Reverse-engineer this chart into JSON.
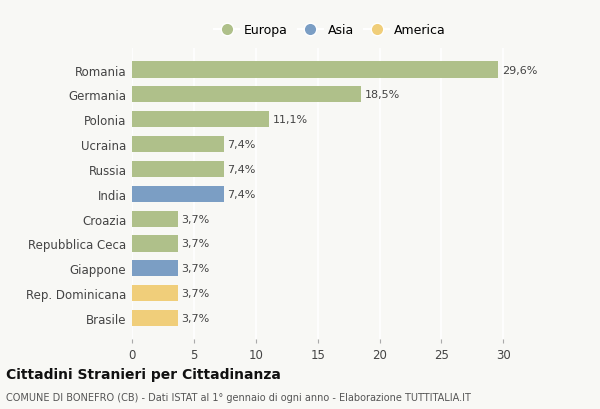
{
  "categories": [
    "Romania",
    "Germania",
    "Polonia",
    "Ucraina",
    "Russia",
    "India",
    "Croazia",
    "Repubblica Ceca",
    "Giappone",
    "Rep. Dominicana",
    "Brasile"
  ],
  "values": [
    29.6,
    18.5,
    11.1,
    7.4,
    7.4,
    7.4,
    3.7,
    3.7,
    3.7,
    3.7,
    3.7
  ],
  "labels": [
    "29,6%",
    "18,5%",
    "11,1%",
    "7,4%",
    "7,4%",
    "7,4%",
    "3,7%",
    "3,7%",
    "3,7%",
    "3,7%",
    "3,7%"
  ],
  "continents": [
    "Europa",
    "Europa",
    "Europa",
    "Europa",
    "Europa",
    "Asia",
    "Europa",
    "Europa",
    "Asia",
    "America",
    "America"
  ],
  "colors": {
    "Europa": "#afc08a",
    "Asia": "#7b9ec4",
    "America": "#f0ce7a"
  },
  "legend": [
    "Europa",
    "Asia",
    "America"
  ],
  "legend_colors": [
    "#afc08a",
    "#7b9ec4",
    "#f0ce7a"
  ],
  "xlim": [
    0,
    32
  ],
  "xticks": [
    0,
    5,
    10,
    15,
    20,
    25,
    30
  ],
  "title": "Cittadini Stranieri per Cittadinanza",
  "subtitle": "COMUNE DI BONEFRO (CB) - Dati ISTAT al 1° gennaio di ogni anno - Elaborazione TUTTITALIA.IT",
  "background_color": "#f8f8f5",
  "grid_color": "#ffffff",
  "bar_height": 0.65
}
